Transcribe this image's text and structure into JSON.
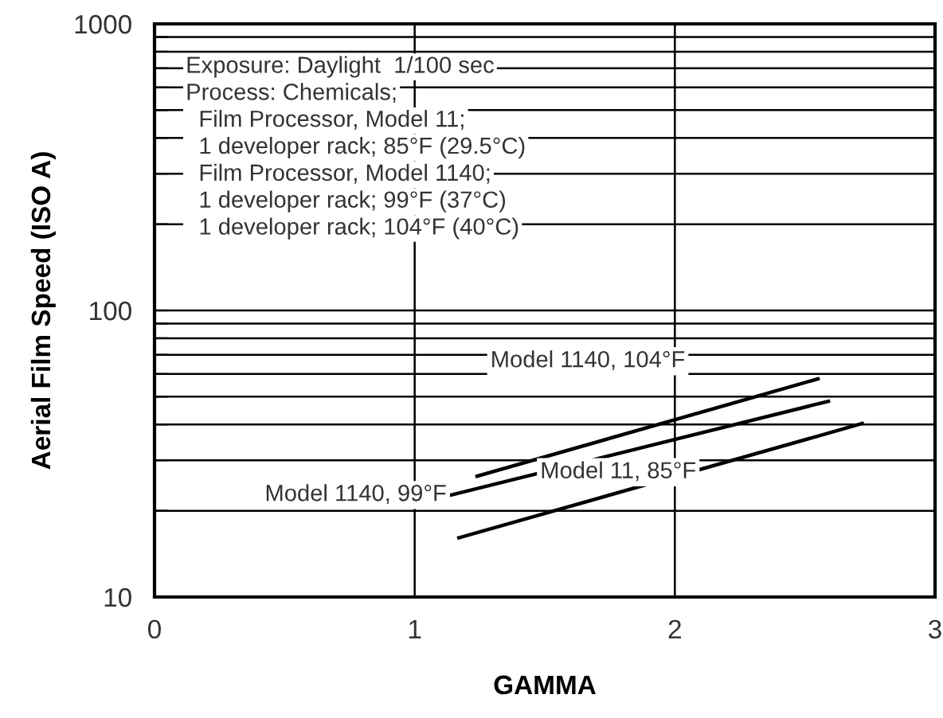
{
  "chart_data": {
    "type": "line",
    "xlabel": "GAMMA",
    "ylabel": "Aerial Film Speed (ISO A)",
    "log": "y",
    "xlim": [
      0,
      3
    ],
    "ylim": [
      10,
      1000
    ],
    "xticks": [
      0,
      1,
      2,
      3
    ],
    "yticks": [
      10,
      {
        "value": 20,
        "label": null
      },
      {
        "value": 30,
        "label": null
      },
      {
        "value": 40,
        "label": null
      },
      {
        "value": 50,
        "label": null
      },
      {
        "value": 60,
        "label": null
      },
      {
        "value": 70,
        "label": null
      },
      {
        "value": 80,
        "label": null
      },
      {
        "value": 90,
        "label": null
      },
      100,
      {
        "value": 200,
        "label": null
      },
      {
        "value": 300,
        "label": null
      },
      {
        "value": 400,
        "label": null
      },
      {
        "value": 500,
        "label": null
      },
      {
        "value": 600,
        "label": null
      },
      {
        "value": 700,
        "label": null
      },
      {
        "value": 800,
        "label": null
      },
      {
        "value": 900,
        "label": null
      },
      1000
    ],
    "grid": true,
    "legend": false,
    "marker": "none",
    "line_style": "solid",
    "series": [
      {
        "name": "Model 1140, 104°F",
        "color": "#000000",
        "x": [
          1.24,
          2.55
        ],
        "values": [
          26.4,
          57.7
        ]
      },
      {
        "name": "Model 1140, 99°F",
        "color": "#000000",
        "x": [
          1.14,
          2.59
        ],
        "values": [
          22.7,
          48.2
        ]
      },
      {
        "name": "Model 11, 85°F",
        "color": "#000000",
        "x": [
          1.17,
          2.72
        ],
        "values": [
          16.1,
          40.3
        ]
      }
    ],
    "annotations": [
      "Exposure: Daylight  1/100 sec",
      "Process: Chemicals;",
      "  Film Processor, Model 11;",
      "  1 developer rack; 85°F (29.5°C)",
      "  Film Processor, Model 1140;",
      "  1 developer rack; 99°F (37°C)",
      "  1 developer rack; 104°F (40°C)"
    ]
  }
}
